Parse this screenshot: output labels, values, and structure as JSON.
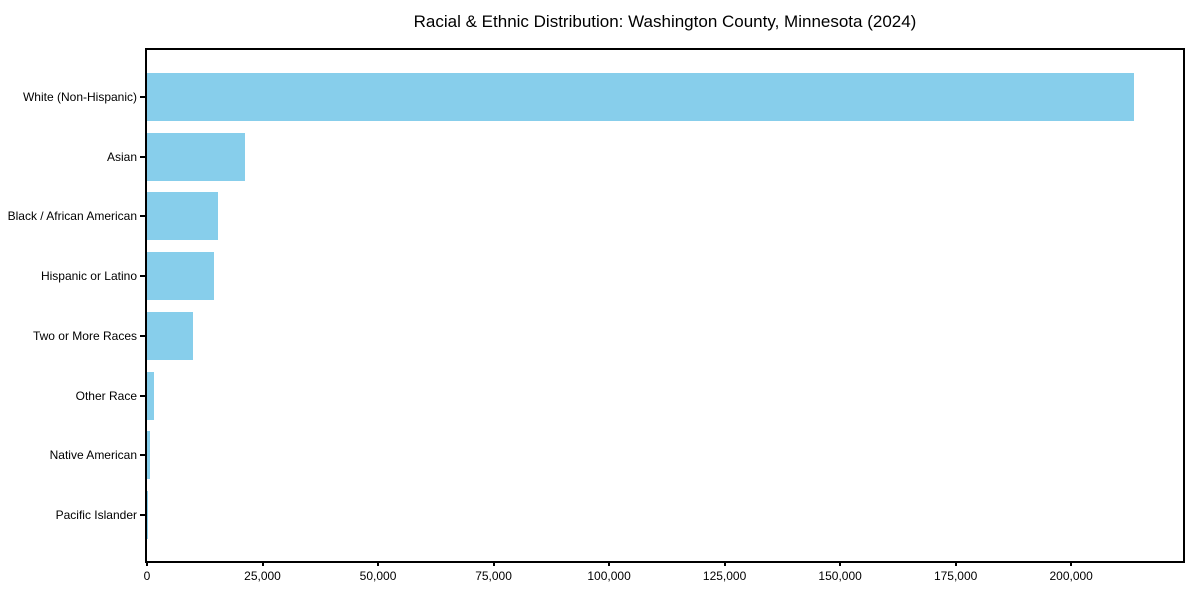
{
  "chart_data": {
    "type": "bar",
    "orientation": "horizontal",
    "title": "Racial & Ethnic Distribution: Washington County, Minnesota (2024)",
    "categories": [
      "White (Non-Hispanic)",
      "Asian",
      "Black / African American",
      "Hispanic or Latino",
      "Two or More Races",
      "Other Race",
      "Native American",
      "Pacific Islander"
    ],
    "values": [
      213500,
      21300,
      15400,
      14500,
      10000,
      1500,
      700,
      100
    ],
    "xlabel": "",
    "ylabel": "",
    "xlim": [
      0,
      224200
    ],
    "x_ticks": [
      0,
      25000,
      50000,
      75000,
      100000,
      125000,
      150000,
      175000,
      200000
    ],
    "x_tick_labels": [
      "0",
      "25,000",
      "50,000",
      "75,000",
      "100,000",
      "125,000",
      "150,000",
      "175,000",
      "200,000"
    ],
    "bar_color": "#87CEEB",
    "axis_color": "#000000",
    "text_color": "#000000",
    "grid": false,
    "legend": null
  }
}
